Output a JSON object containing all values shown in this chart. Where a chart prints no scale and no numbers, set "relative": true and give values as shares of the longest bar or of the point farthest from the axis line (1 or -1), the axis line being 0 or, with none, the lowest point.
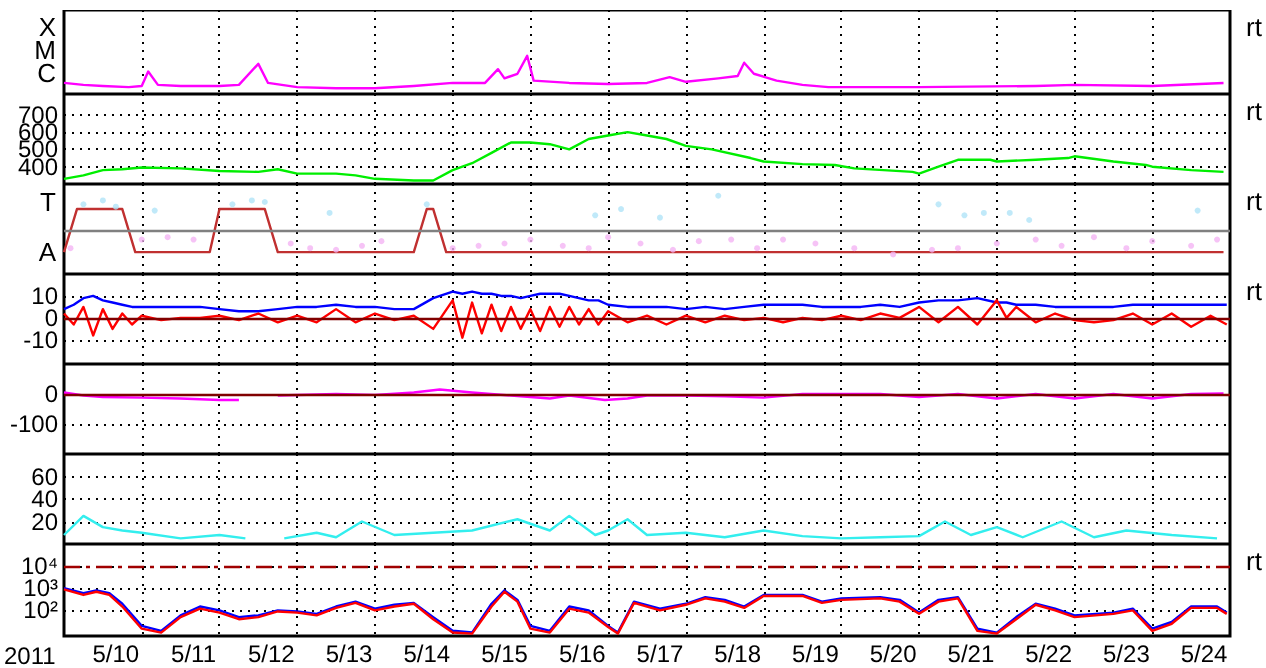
{
  "chart_data": [
    {
      "type": "line",
      "relative": true,
      "annotations": [
        "rt",
        "C",
        "M",
        "X"
      ],
      "grid": "x",
      "tick_labels": false,
      "xlim": [
        "2011-05-10T00:00",
        "2011-05-25T00:00"
      ],
      "xticks": [
        {
          "value": "2011-05-11T00:00",
          "label": null
        },
        {
          "value": "2011-05-12T00:00",
          "label": null
        },
        {
          "value": "2011-05-13T00:00",
          "label": null
        },
        {
          "value": "2011-05-14T00:00",
          "label": null
        },
        {
          "value": "2011-05-15T00:00",
          "label": null
        },
        {
          "value": "2011-05-16T00:00",
          "label": null
        },
        {
          "value": "2011-05-17T00:00",
          "label": null
        },
        {
          "value": "2011-05-18T00:00",
          "label": null
        },
        {
          "value": "2011-05-19T00:00",
          "label": null
        },
        {
          "value": "2011-05-20T00:00",
          "label": null
        },
        {
          "value": "2011-05-21T00:00",
          "label": null
        },
        {
          "value": "2011-05-22T00:00",
          "label": null
        },
        {
          "value": "2011-05-23T00:00",
          "label": null
        },
        {
          "value": "2011-05-24T00:00",
          "label": null
        }
      ],
      "x": [
        "2011-05-10T00:00",
        "2011-05-10T06:00",
        "2011-05-10T12:00",
        "2011-05-10T20:00",
        "2011-05-11T00:00",
        "2011-05-11T02:00",
        "2011-05-11T05:00",
        "2011-05-11T12:00",
        "2011-05-12T00:00",
        "2011-05-12T06:00",
        "2011-05-12T12:00",
        "2011-05-12T15:00",
        "2011-05-13T00:00",
        "2011-05-13T12:00",
        "2011-05-14T00:00",
        "2011-05-14T12:00",
        "2011-05-15T00:00",
        "2011-05-15T10:00",
        "2011-05-15T14:00",
        "2011-05-15T16:00",
        "2011-05-15T20:00",
        "2011-05-15T23:00",
        "2011-05-16T01:00",
        "2011-05-16T12:00",
        "2011-05-17T00:00",
        "2011-05-17T12:00",
        "2011-05-17T19:00",
        "2011-05-18T00:00",
        "2011-05-18T10:00",
        "2011-05-18T16:00",
        "2011-05-18T18:00",
        "2011-05-18T21:00",
        "2011-05-19T04:00",
        "2011-05-19T12:00",
        "2011-05-19T20:00",
        "2011-05-21T00:00",
        "2011-05-22T12:00",
        "2011-05-23T00:00",
        "2011-05-24T00:00",
        "2011-05-24T22:00"
      ],
      "series": [
        {
          "color": "#ff00ff",
          "values": [
            0.29,
            0.24,
            0.21,
            0.18,
            0.21,
            0.59,
            0.24,
            0.21,
            0.21,
            0.24,
            0.79,
            0.29,
            0.18,
            0.15,
            0.15,
            0.21,
            0.29,
            0.29,
            0.65,
            0.41,
            0.53,
            1,
            0.35,
            0.29,
            0.26,
            0.29,
            0.44,
            0.32,
            0.41,
            0.47,
            0.82,
            0.53,
            0.35,
            0.24,
            0.18,
            0.18,
            0.21,
            0.24,
            0.21,
            0.29
          ]
        }
      ]
    },
    {
      "type": "line",
      "annotations": [
        "rt"
      ],
      "grid": true,
      "tick_labels": "y",
      "xlim": [
        "2011-05-10T00:00",
        "2011-05-25T00:00"
      ],
      "ylim": [
        300,
        820
      ],
      "yticks": [
        400,
        500,
        600,
        700
      ],
      "xticks": [
        {
          "value": "2011-05-11T00:00",
          "label": null
        },
        {
          "value": "2011-05-12T00:00",
          "label": null
        },
        {
          "value": "2011-05-13T00:00",
          "label": null
        },
        {
          "value": "2011-05-14T00:00",
          "label": null
        },
        {
          "value": "2011-05-15T00:00",
          "label": null
        },
        {
          "value": "2011-05-16T00:00",
          "label": null
        },
        {
          "value": "2011-05-17T00:00",
          "label": null
        },
        {
          "value": "2011-05-18T00:00",
          "label": null
        },
        {
          "value": "2011-05-19T00:00",
          "label": null
        },
        {
          "value": "2011-05-20T00:00",
          "label": null
        },
        {
          "value": "2011-05-21T00:00",
          "label": null
        },
        {
          "value": "2011-05-22T00:00",
          "label": null
        },
        {
          "value": "2011-05-23T00:00",
          "label": null
        },
        {
          "value": "2011-05-24T00:00",
          "label": null
        }
      ],
      "x": [
        "2011-05-10T00:00",
        "2011-05-10T06:00",
        "2011-05-10T12:00",
        "2011-05-10T18:00",
        "2011-05-11T00:00",
        "2011-05-11T12:00",
        "2011-05-12T00:00",
        "2011-05-12T12:00",
        "2011-05-12T18:00",
        "2011-05-13T00:00",
        "2011-05-13T12:00",
        "2011-05-13T18:00",
        "2011-05-14T00:00",
        "2011-05-14T12:00",
        "2011-05-14T18:00",
        "2011-05-15T00:00",
        "2011-05-15T06:00",
        "2011-05-15T12:00",
        "2011-05-15T18:00",
        "2011-05-16T00:00",
        "2011-05-16T06:00",
        "2011-05-16T12:00",
        "2011-05-16T18:00",
        "2011-05-17T00:00",
        "2011-05-17T06:00",
        "2011-05-17T12:00",
        "2011-05-17T18:00",
        "2011-05-18T00:00",
        "2011-05-18T08:00",
        "2011-05-18T20:00",
        "2011-05-19T00:00",
        "2011-05-19T12:00",
        "2011-05-19T22:00",
        "2011-05-20T04:00",
        "2011-05-20T22:00",
        "2011-05-21T00:00",
        "2011-05-21T06:00",
        "2011-05-21T12:00",
        "2011-05-21T22:00",
        "2011-05-22T00:00",
        "2011-05-22T12:00",
        "2011-05-22T22:00",
        "2011-05-23T00:00",
        "2011-05-23T12:00",
        "2011-05-23T22:00",
        "2011-05-24T00:00",
        "2011-05-24T12:00",
        "2011-05-24T22:00"
      ],
      "series": [
        {
          "color": "#00ee00",
          "values": [
            330,
            350,
            380,
            385,
            395,
            390,
            375,
            370,
            385,
            360,
            360,
            350,
            330,
            320,
            320,
            380,
            420,
            480,
            540,
            540,
            530,
            500,
            560,
            580,
            600,
            580,
            560,
            520,
            500,
            450,
            430,
            415,
            410,
            390,
            370,
            360,
            400,
            440,
            440,
            430,
            440,
            450,
            460,
            430,
            410,
            400,
            380,
            370
          ]
        }
      ]
    },
    {
      "type": "line",
      "relative": true,
      "annotations": [
        "rt",
        "A",
        "T"
      ],
      "grid": "x",
      "tick_labels": false,
      "xlim": [
        "2011-05-10T00:00",
        "2011-05-25T00:00"
      ],
      "xticks": [
        {
          "value": "2011-05-11T00:00",
          "label": null
        },
        {
          "value": "2011-05-12T00:00",
          "label": null
        },
        {
          "value": "2011-05-13T00:00",
          "label": null
        },
        {
          "value": "2011-05-14T00:00",
          "label": null
        },
        {
          "value": "2011-05-15T00:00",
          "label": null
        },
        {
          "value": "2011-05-16T00:00",
          "label": null
        },
        {
          "value": "2011-05-17T00:00",
          "label": null
        },
        {
          "value": "2011-05-18T00:00",
          "label": null
        },
        {
          "value": "2011-05-19T00:00",
          "label": null
        },
        {
          "value": "2011-05-20T00:00",
          "label": null
        },
        {
          "value": "2011-05-21T00:00",
          "label": null
        },
        {
          "value": "2011-05-22T00:00",
          "label": null
        },
        {
          "value": "2011-05-23T00:00",
          "label": null
        },
        {
          "value": "2011-05-24T00:00",
          "label": null
        }
      ],
      "ref_lines": [
        {
          "axis": "y",
          "value": 0.56,
          "color": "#808080"
        }
      ],
      "series": [
        {
          "type": "scatter",
          "color": "#b0e4f8",
          "x": [
            "2011-05-10T06:00",
            "2011-05-10T12:00",
            "2011-05-10T16:00",
            "2011-05-11T04:00",
            "2011-05-12T04:00",
            "2011-05-12T10:00",
            "2011-05-12T14:00",
            "2011-05-13T10:00",
            "2011-05-14T16:00",
            "2011-05-16T20:00",
            "2011-05-17T04:00",
            "2011-05-17T16:00",
            "2011-05-18T10:00",
            "2011-05-21T06:00",
            "2011-05-21T14:00",
            "2011-05-21T20:00",
            "2011-05-22T04:00",
            "2011-05-22T10:00",
            "2011-05-24T14:00"
          ],
          "values": [
            0.89,
            0.94,
            0.86,
            0.81,
            0.89,
            0.94,
            0.92,
            0.78,
            0.89,
            0.75,
            0.83,
            0.72,
            1,
            0.89,
            0.75,
            0.78,
            0.78,
            0.69,
            0.81
          ]
        },
        {
          "type": "scatter",
          "color": "#f4b4f4",
          "x": [
            "2011-05-10T02:00",
            "2011-05-11T00:00",
            "2011-05-11T08:00",
            "2011-05-11T16:00",
            "2011-05-12T22:00",
            "2011-05-13T04:00",
            "2011-05-13T12:00",
            "2011-05-13T20:00",
            "2011-05-14T02:00",
            "2011-05-15T00:00",
            "2011-05-15T08:00",
            "2011-05-15T16:00",
            "2011-05-16T00:00",
            "2011-05-16T10:00",
            "2011-05-16T18:00",
            "2011-05-17T00:00",
            "2011-05-17T10:00",
            "2011-05-17T20:00",
            "2011-05-18T04:00",
            "2011-05-18T14:00",
            "2011-05-18T22:00",
            "2011-05-19T06:00",
            "2011-05-19T16:00",
            "2011-05-20T04:00",
            "2011-05-20T16:00",
            "2011-05-21T04:00",
            "2011-05-21T12:00",
            "2011-05-22T00:00",
            "2011-05-22T12:00",
            "2011-05-22T20:00",
            "2011-05-23T06:00",
            "2011-05-23T16:00",
            "2011-05-24T00:00",
            "2011-05-24T12:00",
            "2011-05-24T20:00"
          ],
          "values": [
            0.33,
            0.44,
            0.47,
            0.44,
            0.39,
            0.33,
            0.31,
            0.36,
            0.42,
            0.33,
            0.36,
            0.39,
            0.44,
            0.36,
            0.33,
            0.47,
            0.39,
            0.31,
            0.42,
            0.44,
            0.33,
            0.44,
            0.39,
            0.33,
            0.25,
            0.31,
            0.33,
            0.39,
            0.44,
            0.36,
            0.47,
            0.33,
            0.42,
            0.36,
            0.44
          ]
        },
        {
          "color": "#c03030",
          "x": [
            "2011-05-10T00:00",
            "2011-05-10T04:00",
            "2011-05-10T18:00",
            "2011-05-10T22:00",
            "2011-05-11T21:00",
            "2011-05-12T00:00",
            "2011-05-12T14:00",
            "2011-05-12T18:00",
            "2011-05-14T12:00",
            "2011-05-14T16:00",
            "2011-05-14T18:00",
            "2011-05-14T22:00",
            "2011-05-24T22:00"
          ],
          "values": [
            0.28,
            0.83,
            0.83,
            0.28,
            0.28,
            0.83,
            0.83,
            0.28,
            0.28,
            0.83,
            0.83,
            0.28,
            0.28
          ]
        }
      ]
    },
    {
      "type": "line",
      "annotations": [
        "rt"
      ],
      "grid": true,
      "tick_labels": "y",
      "xlim": [
        "2011-05-10T00:00",
        "2011-05-25T00:00"
      ],
      "ylim": [
        -21,
        20
      ],
      "yticks": [
        -10,
        0,
        10
      ],
      "xticks": [
        {
          "value": "2011-05-11T00:00",
          "label": null
        },
        {
          "value": "2011-05-12T00:00",
          "label": null
        },
        {
          "value": "2011-05-13T00:00",
          "label": null
        },
        {
          "value": "2011-05-14T00:00",
          "label": null
        },
        {
          "value": "2011-05-15T00:00",
          "label": null
        },
        {
          "value": "2011-05-16T00:00",
          "label": null
        },
        {
          "value": "2011-05-17T00:00",
          "label": null
        },
        {
          "value": "2011-05-18T00:00",
          "label": null
        },
        {
          "value": "2011-05-19T00:00",
          "label": null
        },
        {
          "value": "2011-05-20T00:00",
          "label": null
        },
        {
          "value": "2011-05-21T00:00",
          "label": null
        },
        {
          "value": "2011-05-22T00:00",
          "label": null
        },
        {
          "value": "2011-05-23T00:00",
          "label": null
        },
        {
          "value": "2011-05-24T00:00",
          "label": null
        }
      ],
      "ref_lines": [
        {
          "axis": "y",
          "value": 0,
          "color": "#800000"
        }
      ],
      "x": [
        "2011-05-10T00:00",
        "2011-05-10T03:00",
        "2011-05-10T06:00",
        "2011-05-10T09:00",
        "2011-05-10T12:00",
        "2011-05-10T15:00",
        "2011-05-10T18:00",
        "2011-05-10T21:00",
        "2011-05-11T00:00",
        "2011-05-11T06:00",
        "2011-05-11T12:00",
        "2011-05-11T18:00",
        "2011-05-12T00:00",
        "2011-05-12T06:00",
        "2011-05-12T12:00",
        "2011-05-12T18:00",
        "2011-05-13T00:00",
        "2011-05-13T06:00",
        "2011-05-13T12:00",
        "2011-05-13T18:00",
        "2011-05-14T00:00",
        "2011-05-14T06:00",
        "2011-05-14T12:00",
        "2011-05-14T18:00",
        "2011-05-15T00:00",
        "2011-05-15T03:00",
        "2011-05-15T06:00",
        "2011-05-15T09:00",
        "2011-05-15T12:00",
        "2011-05-15T15:00",
        "2011-05-15T18:00",
        "2011-05-15T21:00",
        "2011-05-16T00:00",
        "2011-05-16T03:00",
        "2011-05-16T06:00",
        "2011-05-16T09:00",
        "2011-05-16T12:00",
        "2011-05-16T15:00",
        "2011-05-16T18:00",
        "2011-05-16T21:00",
        "2011-05-17T00:00",
        "2011-05-17T06:00",
        "2011-05-17T12:00",
        "2011-05-17T18:00",
        "2011-05-18T00:00",
        "2011-05-18T06:00",
        "2011-05-18T12:00",
        "2011-05-18T18:00",
        "2011-05-19T00:00",
        "2011-05-19T06:00",
        "2011-05-19T12:00",
        "2011-05-19T18:00",
        "2011-05-20T00:00",
        "2011-05-20T06:00",
        "2011-05-20T12:00",
        "2011-05-20T18:00",
        "2011-05-21T00:00",
        "2011-05-21T06:00",
        "2011-05-21T12:00",
        "2011-05-21T18:00",
        "2011-05-22T00:00",
        "2011-05-22T03:00",
        "2011-05-22T06:00",
        "2011-05-22T12:00",
        "2011-05-22T18:00",
        "2011-05-23T00:00",
        "2011-05-23T06:00",
        "2011-05-23T12:00",
        "2011-05-23T18:00",
        "2011-05-24T00:00",
        "2011-05-24T06:00",
        "2011-05-24T12:00",
        "2011-05-24T18:00",
        "2011-05-24T23:00"
      ],
      "series": [
        {
          "color": "#0000ff",
          "values": [
            4,
            6,
            9,
            10,
            8,
            7,
            6,
            5,
            5,
            5,
            5,
            5,
            4,
            3,
            3,
            4,
            5,
            5,
            6,
            5,
            5,
            4,
            4,
            9,
            12,
            11,
            12,
            11,
            11,
            10,
            10,
            9,
            10,
            11,
            11,
            11,
            10,
            9,
            8,
            8,
            6,
            5,
            5,
            5,
            4,
            5,
            4,
            5,
            6,
            6,
            6,
            5,
            5,
            5,
            6,
            5,
            7,
            8,
            8,
            9,
            7,
            7,
            6,
            6,
            5,
            5,
            5,
            5,
            6,
            6,
            6,
            6,
            6,
            6
          ]
        },
        {
          "color": "#ff0000",
          "values": [
            2,
            -3,
            5,
            -8,
            4,
            -5,
            2,
            -3,
            1,
            -1,
            0,
            0,
            1,
            -1,
            2,
            -2,
            1,
            -2,
            4,
            -2,
            2,
            -1,
            1,
            -5,
            8,
            -9,
            7,
            -7,
            6,
            -6,
            5,
            -5,
            4,
            -6,
            5,
            -4,
            5,
            -3,
            4,
            -3,
            3,
            -2,
            1,
            -3,
            1,
            -2,
            1,
            -1,
            0,
            -2,
            0,
            -1,
            1,
            -1,
            2,
            0,
            5,
            -2,
            5,
            -3,
            8,
            0,
            5,
            -2,
            2,
            -1,
            -2,
            -1,
            2,
            -3,
            2,
            -4,
            1,
            -3
          ]
        }
      ]
    },
    {
      "type": "line",
      "grid": true,
      "tick_labels": "y",
      "xlim": [
        "2011-05-10T00:00",
        "2011-05-25T00:00"
      ],
      "ylim": [
        -200,
        100
      ],
      "yticks": [
        -100,
        0
      ],
      "xticks": [
        {
          "value": "2011-05-11T00:00",
          "label": null
        },
        {
          "value": "2011-05-12T00:00",
          "label": null
        },
        {
          "value": "2011-05-13T00:00",
          "label": null
        },
        {
          "value": "2011-05-14T00:00",
          "label": null
        },
        {
          "value": "2011-05-15T00:00",
          "label": null
        },
        {
          "value": "2011-05-16T00:00",
          "label": null
        },
        {
          "value": "2011-05-17T00:00",
          "label": null
        },
        {
          "value": "2011-05-18T00:00",
          "label": null
        },
        {
          "value": "2011-05-19T00:00",
          "label": null
        },
        {
          "value": "2011-05-20T00:00",
          "label": null
        },
        {
          "value": "2011-05-21T00:00",
          "label": null
        },
        {
          "value": "2011-05-22T00:00",
          "label": null
        },
        {
          "value": "2011-05-23T00:00",
          "label": null
        },
        {
          "value": "2011-05-24T00:00",
          "label": null
        }
      ],
      "ref_lines": [
        {
          "axis": "y",
          "value": 0,
          "color": "#800000"
        }
      ],
      "x": [
        "2011-05-10T00:00",
        "2011-05-10T06:00",
        "2011-05-10T12:00",
        "2011-05-11T00:00",
        "2011-05-11T12:00",
        "2011-05-12T00:00",
        "2011-05-12T06:00",
        "2011-05-12T12:00",
        "2011-05-12T18:00",
        "2011-05-13T12:00",
        "2011-05-14T00:00",
        "2011-05-14T12:00",
        "2011-05-14T20:00",
        "2011-05-15T06:00",
        "2011-05-15T18:00",
        "2011-05-16T06:00",
        "2011-05-16T12:00",
        "2011-05-16T23:00",
        "2011-05-17T06:00",
        "2011-05-17T12:00",
        "2011-05-18T00:00",
        "2011-05-18T12:00",
        "2011-05-19T00:00",
        "2011-05-19T12:00",
        "2011-05-20T00:00",
        "2011-05-20T12:00",
        "2011-05-21T00:00",
        "2011-05-21T12:00",
        "2011-05-22T00:00",
        "2011-05-22T12:00",
        "2011-05-23T00:00",
        "2011-05-23T12:00",
        "2011-05-24T00:00",
        "2011-05-24T12:00",
        "2011-05-24T22:00"
      ],
      "series": [
        {
          "color": "#ff00ff",
          "values": [
            5,
            -5,
            -10,
            -12,
            -15,
            -20,
            -20,
            null,
            -5,
            0,
            -3,
            5,
            15,
            5,
            -5,
            -15,
            -5,
            -20,
            -15,
            -5,
            -5,
            -8,
            -12,
            0,
            0,
            0,
            -10,
            0,
            -15,
            0,
            -15,
            0,
            -15,
            0,
            2
          ]
        }
      ]
    },
    {
      "type": "line",
      "grid": true,
      "tick_labels": "y",
      "xlim": [
        "2011-05-10T00:00",
        "2011-05-25T00:00"
      ],
      "ylim": [
        0,
        80
      ],
      "yticks": [
        20,
        40,
        60
      ],
      "xticks": [
        {
          "value": "2011-05-11T00:00",
          "label": null
        },
        {
          "value": "2011-05-12T00:00",
          "label": null
        },
        {
          "value": "2011-05-13T00:00",
          "label": null
        },
        {
          "value": "2011-05-14T00:00",
          "label": null
        },
        {
          "value": "2011-05-15T00:00",
          "label": null
        },
        {
          "value": "2011-05-16T00:00",
          "label": null
        },
        {
          "value": "2011-05-17T00:00",
          "label": null
        },
        {
          "value": "2011-05-18T00:00",
          "label": null
        },
        {
          "value": "2011-05-19T00:00",
          "label": null
        },
        {
          "value": "2011-05-20T00:00",
          "label": null
        },
        {
          "value": "2011-05-21T00:00",
          "label": null
        },
        {
          "value": "2011-05-22T00:00",
          "label": null
        },
        {
          "value": "2011-05-23T00:00",
          "label": null
        },
        {
          "value": "2011-05-24T00:00",
          "label": null
        }
      ],
      "x": [
        "2011-05-10T00:00",
        "2011-05-10T06:00",
        "2011-05-10T12:00",
        "2011-05-10T18:00",
        "2011-05-11T00:00",
        "2011-05-11T12:00",
        "2011-05-12T00:00",
        "2011-05-12T08:00",
        "2011-05-12T14:00",
        "2011-05-12T20:00",
        "2011-05-13T06:00",
        "2011-05-13T12:00",
        "2011-05-13T20:00",
        "2011-05-14T06:00",
        "2011-05-14T18:00",
        "2011-05-15T06:00",
        "2011-05-15T20:00",
        "2011-05-16T06:00",
        "2011-05-16T12:00",
        "2011-05-16T20:00",
        "2011-05-17T00:00",
        "2011-05-17T06:00",
        "2011-05-17T12:00",
        "2011-05-18T00:00",
        "2011-05-18T12:00",
        "2011-05-19T00:00",
        "2011-05-19T12:00",
        "2011-05-20T00:00",
        "2011-05-20T12:00",
        "2011-05-21T00:00",
        "2011-05-21T08:00",
        "2011-05-21T16:00",
        "2011-05-22T00:00",
        "2011-05-22T08:00",
        "2011-05-22T20:00",
        "2011-05-23T06:00",
        "2011-05-23T16:00",
        "2011-05-24T06:00",
        "2011-05-24T20:00"
      ],
      "series": [
        {
          "color": "#33eeee",
          "values": [
            8,
            25,
            15,
            12,
            10,
            5,
            8,
            5,
            null,
            5,
            10,
            6,
            20,
            8,
            10,
            12,
            22,
            12,
            25,
            8,
            12,
            22,
            8,
            10,
            6,
            12,
            7,
            5,
            6,
            7,
            20,
            8,
            15,
            6,
            20,
            6,
            12,
            8,
            5
          ]
        }
      ]
    },
    {
      "type": "line",
      "annotations": [
        "rt"
      ],
      "xlabel": "2011",
      "grid": true,
      "log": true,
      "xlim": [
        "2011-05-10T00:00",
        "2011-05-25T00:00"
      ],
      "ylim": [
        7,
        100000
      ],
      "yticks": [
        {
          "value": 100,
          "label": "10²"
        },
        {
          "value": 1000,
          "label": "10³"
        },
        {
          "value": 10000,
          "label": "10⁴"
        }
      ],
      "xticks": [
        {
          "value": "2011-05-10T16:00",
          "label": "5/10"
        },
        {
          "value": "2011-05-11T00:00",
          "label": null
        },
        {
          "value": "2011-05-11T16:00",
          "label": "5/11"
        },
        {
          "value": "2011-05-12T00:00",
          "label": null
        },
        {
          "value": "2011-05-12T16:00",
          "label": "5/12"
        },
        {
          "value": "2011-05-13T00:00",
          "label": null
        },
        {
          "value": "2011-05-13T16:00",
          "label": "5/13"
        },
        {
          "value": "2011-05-14T00:00",
          "label": null
        },
        {
          "value": "2011-05-14T16:00",
          "label": "5/14"
        },
        {
          "value": "2011-05-15T00:00",
          "label": null
        },
        {
          "value": "2011-05-15T16:00",
          "label": "5/15"
        },
        {
          "value": "2011-05-16T00:00",
          "label": null
        },
        {
          "value": "2011-05-16T16:00",
          "label": "5/16"
        },
        {
          "value": "2011-05-17T00:00",
          "label": null
        },
        {
          "value": "2011-05-17T16:00",
          "label": "5/17"
        },
        {
          "value": "2011-05-18T00:00",
          "label": null
        },
        {
          "value": "2011-05-18T16:00",
          "label": "5/18"
        },
        {
          "value": "2011-05-19T00:00",
          "label": null
        },
        {
          "value": "2011-05-19T16:00",
          "label": "5/19"
        },
        {
          "value": "2011-05-20T00:00",
          "label": null
        },
        {
          "value": "2011-05-20T16:00",
          "label": "5/20"
        },
        {
          "value": "2011-05-21T00:00",
          "label": null
        },
        {
          "value": "2011-05-21T16:00",
          "label": "5/21"
        },
        {
          "value": "2011-05-22T00:00",
          "label": null
        },
        {
          "value": "2011-05-22T16:00",
          "label": "5/22"
        },
        {
          "value": "2011-05-23T00:00",
          "label": null
        },
        {
          "value": "2011-05-23T16:00",
          "label": "5/23"
        },
        {
          "value": "2011-05-24T00:00",
          "label": null
        },
        {
          "value": "2011-05-24T16:00",
          "label": "5/24"
        }
      ],
      "ref_lines": [
        {
          "axis": "y",
          "value": 10000,
          "color": "#a00000",
          "line_style": "dashed"
        }
      ],
      "x": [
        "2011-05-10T00:00",
        "2011-05-10T06:00",
        "2011-05-10T10:00",
        "2011-05-10T14:00",
        "2011-05-10T18:00",
        "2011-05-11T00:00",
        "2011-05-11T06:00",
        "2011-05-11T12:00",
        "2011-05-11T18:00",
        "2011-05-12T00:00",
        "2011-05-12T06:00",
        "2011-05-12T12:00",
        "2011-05-12T18:00",
        "2011-05-13T00:00",
        "2011-05-13T06:00",
        "2011-05-13T12:00",
        "2011-05-13T18:00",
        "2011-05-14T00:00",
        "2011-05-14T06:00",
        "2011-05-14T12:00",
        "2011-05-14T18:00",
        "2011-05-15T00:00",
        "2011-05-15T06:00",
        "2011-05-15T12:00",
        "2011-05-15T16:00",
        "2011-05-15T20:00",
        "2011-05-16T00:00",
        "2011-05-16T06:00",
        "2011-05-16T12:00",
        "2011-05-16T18:00",
        "2011-05-17T00:00",
        "2011-05-17T03:00",
        "2011-05-17T08:00",
        "2011-05-17T16:00",
        "2011-05-18T00:00",
        "2011-05-18T06:00",
        "2011-05-18T12:00",
        "2011-05-18T18:00",
        "2011-05-19T00:00",
        "2011-05-19T12:00",
        "2011-05-19T18:00",
        "2011-05-20T00:00",
        "2011-05-20T12:00",
        "2011-05-20T18:00",
        "2011-05-21T00:00",
        "2011-05-21T06:00",
        "2011-05-21T12:00",
        "2011-05-21T18:00",
        "2011-05-22T00:00",
        "2011-05-22T06:00",
        "2011-05-22T12:00",
        "2011-05-22T18:00",
        "2011-05-23T00:00",
        "2011-05-23T12:00",
        "2011-05-23T18:00",
        "2011-05-24T00:00",
        "2011-05-24T06:00",
        "2011-05-24T12:00",
        "2011-05-24T20:00",
        "2011-05-24T23:00"
      ],
      "series": [
        {
          "color": "#0000ff",
          "values": [
            1000,
            600,
            800,
            600,
            200,
            20,
            12,
            60,
            150,
            100,
            50,
            60,
            100,
            90,
            70,
            150,
            250,
            120,
            180,
            220,
            50,
            12,
            10,
            200,
            800,
            300,
            20,
            12,
            150,
            100,
            20,
            10,
            250,
            120,
            200,
            400,
            300,
            150,
            500,
            500,
            250,
            350,
            400,
            300,
            80,
            300,
            400,
            15,
            10,
            50,
            200,
            120,
            60,
            80,
            120,
            15,
            30,
            150,
            150,
            80
          ]
        },
        {
          "color": "#ff0000",
          "values": [
            900,
            500,
            700,
            500,
            150,
            15,
            10,
            50,
            120,
            80,
            40,
            50,
            90,
            80,
            60,
            130,
            220,
            100,
            150,
            200,
            40,
            10,
            9,
            150,
            700,
            250,
            15,
            10,
            120,
            80,
            18,
            9,
            220,
            100,
            180,
            350,
            250,
            130,
            450,
            450,
            220,
            300,
            350,
            250,
            70,
            250,
            350,
            12,
            9,
            40,
            180,
            100,
            50,
            70,
            100,
            12,
            25,
            130,
            130,
            70
          ]
        }
      ]
    }
  ]
}
